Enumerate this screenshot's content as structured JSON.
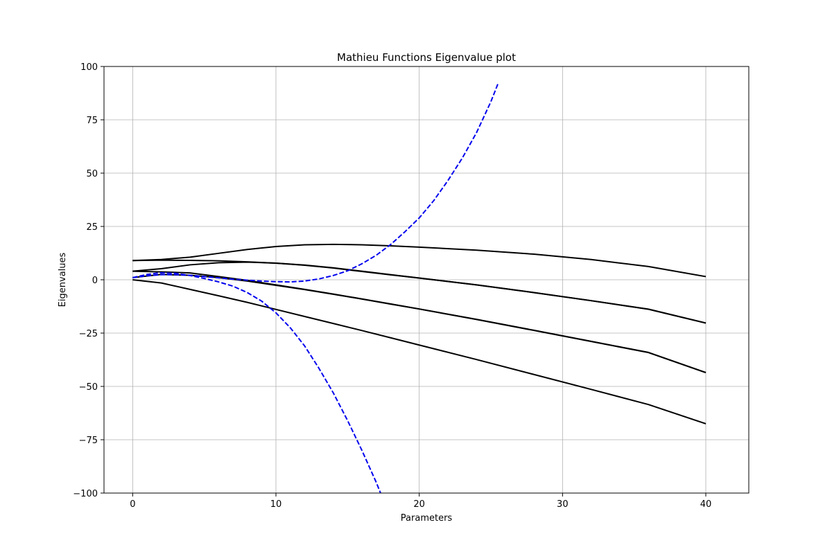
{
  "chart_data": {
    "type": "line",
    "title": "Mathieu Functions Eigenvalue plot",
    "xlabel": "Parameters",
    "ylabel": "Eigenvalues",
    "xlim": [
      -2,
      43
    ],
    "ylim": [
      -100,
      100
    ],
    "xticks": [
      0,
      10,
      20,
      30,
      40
    ],
    "yticks": [
      -100,
      -75,
      -50,
      -25,
      0,
      25,
      50,
      75,
      100
    ],
    "yticklabels": [
      "−100",
      "−75",
      "−50",
      "−25",
      "0",
      "25",
      "50",
      "75",
      "100"
    ],
    "grid": true,
    "series": [
      {
        "style": "solid",
        "color": "#000000",
        "x": [
          0,
          2,
          4,
          6,
          8,
          10,
          12,
          14,
          16,
          18,
          20,
          24,
          28,
          32,
          36,
          40
        ],
        "y": [
          0,
          -1.5,
          -4.5,
          -7.5,
          -10.6,
          -13.9,
          -17.2,
          -20.5,
          -23.8,
          -27.2,
          -30.6,
          -37.4,
          -44.4,
          -51.4,
          -58.5,
          -67.5
        ]
      },
      {
        "style": "solid",
        "color": "#000000",
        "x": [
          0,
          2,
          4,
          6,
          8,
          10,
          12,
          14,
          16,
          18,
          20,
          24,
          28,
          32,
          36,
          40
        ],
        "y": [
          1,
          2.5,
          2.1,
          1.0,
          -0.6,
          -2.6,
          -4.6,
          -6.8,
          -9.0,
          -11.3,
          -13.7,
          -18.6,
          -23.7,
          -28.9,
          -34.1,
          -43.5
        ]
      },
      {
        "style": "solid",
        "color": "#000000",
        "x": [
          0,
          2,
          4,
          6,
          8,
          10,
          12,
          14,
          16,
          18,
          20,
          24,
          28,
          32,
          36,
          40
        ],
        "y": [
          4,
          5.2,
          7.0,
          8.0,
          8.3,
          7.8,
          6.8,
          5.5,
          3.9,
          2.3,
          0.8,
          -2.4,
          -6.0,
          -9.8,
          -13.8,
          -20.3
        ]
      },
      {
        "style": "solid",
        "color": "#000000",
        "x": [
          0,
          2,
          4,
          6,
          8,
          10,
          12,
          14,
          16,
          18,
          20,
          24,
          28,
          32,
          36,
          40
        ],
        "y": [
          9,
          9.5,
          10.6,
          12.4,
          14.2,
          15.6,
          16.4,
          16.6,
          16.4,
          15.9,
          15.3,
          13.9,
          12.0,
          9.5,
          6.2,
          1.5
        ]
      },
      {
        "style": "solid",
        "color": "#000000",
        "x": [
          0,
          2,
          4,
          6,
          8,
          10,
          12,
          14,
          16,
          18,
          20,
          24,
          28,
          32,
          36,
          40
        ],
        "y": [
          4,
          3.7,
          3.2,
          1.5,
          -0.3,
          -2.4,
          -4.5,
          -6.7,
          -9.0,
          -11.4,
          -13.7,
          -18.6,
          -23.7,
          -28.9,
          -34.1,
          -43.5
        ]
      },
      {
        "style": "solid",
        "color": "#000000",
        "x": [
          0,
          2,
          4,
          6,
          8,
          10,
          12,
          14,
          16,
          18,
          20,
          24,
          28,
          32,
          36,
          40
        ],
        "y": [
          9,
          9.2,
          9.1,
          8.9,
          8.4,
          7.8,
          6.9,
          5.6,
          4.0,
          2.4,
          0.8,
          -2.4,
          -6.0,
          -9.8,
          -13.8,
          -20.3
        ]
      },
      {
        "style": "dashed",
        "color": "#0000ee",
        "x": [
          0,
          1,
          2,
          3,
          4,
          5,
          6,
          7,
          8,
          9,
          10,
          11,
          12,
          13,
          14,
          15,
          16,
          17,
          18,
          19,
          20,
          21,
          22,
          23,
          24,
          25,
          25.5
        ],
        "y": [
          1,
          1.9,
          2.4,
          2.4,
          2.1,
          1.5,
          0.9,
          0.3,
          -0.2,
          -0.6,
          -0.9,
          -1.0,
          -0.6,
          0.4,
          2.0,
          4.2,
          7.5,
          11.5,
          16.5,
          22.5,
          29.0,
          37.0,
          46.5,
          57.0,
          69.0,
          83.5,
          92.0
        ]
      },
      {
        "style": "dashed",
        "color": "#0000ee",
        "x": [
          0,
          1,
          2,
          3,
          4,
          5,
          6,
          7,
          8,
          9,
          10,
          11,
          12,
          13,
          14,
          15,
          16,
          17,
          17.3
        ],
        "y": [
          1,
          2.5,
          3.3,
          3.0,
          2.0,
          0.6,
          -1.0,
          -3.0,
          -6.0,
          -10.0,
          -15.5,
          -22.5,
          -31.0,
          -41.5,
          -53.0,
          -66.0,
          -80.0,
          -95.0,
          -100.0
        ]
      }
    ]
  }
}
